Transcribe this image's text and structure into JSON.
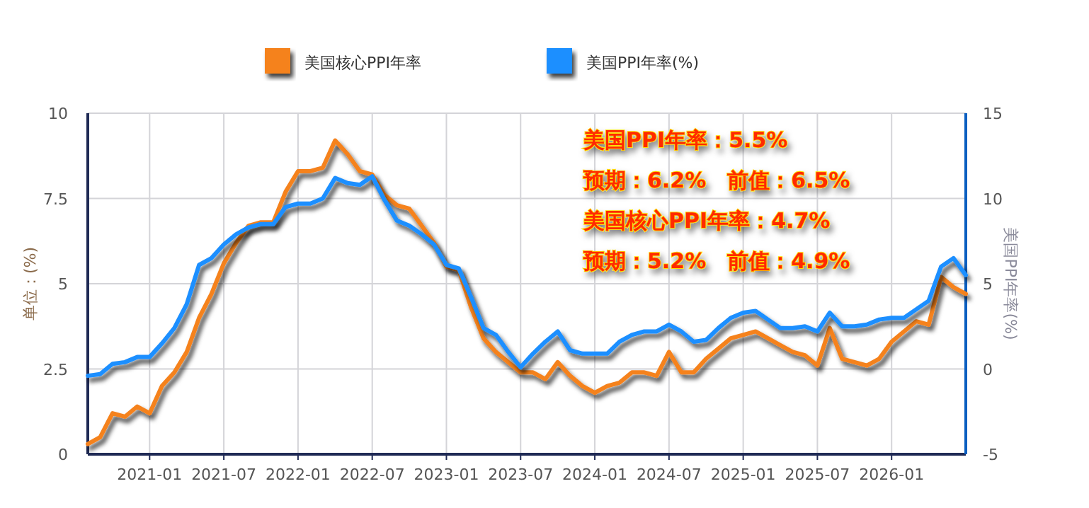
{
  "chart_data": {
    "type": "line",
    "ylabel": "单位：(%)",
    "y2label": "美国PPI年率(%)",
    "x": [
      "2020-08",
      "2020-09",
      "2020-10",
      "2020-11",
      "2020-12",
      "2021-01",
      "2021-02",
      "2021-03",
      "2021-04",
      "2021-05",
      "2021-06",
      "2021-07",
      "2021-08",
      "2021-09",
      "2021-10",
      "2021-11",
      "2021-12",
      "2022-01",
      "2022-02",
      "2022-03",
      "2022-04",
      "2022-05",
      "2022-06",
      "2022-07",
      "2022-08",
      "2022-09",
      "2022-10",
      "2022-11",
      "2022-12",
      "2023-01",
      "2023-02",
      "2023-03",
      "2023-04",
      "2023-05",
      "2023-06",
      "2023-07",
      "2023-08",
      "2023-09",
      "2023-10",
      "2023-11",
      "2023-12",
      "2024-01",
      "2024-02",
      "2024-03",
      "2024-04",
      "2024-05",
      "2024-06",
      "2024-07",
      "2024-08",
      "2024-09",
      "2024-10",
      "2024-11",
      "2024-12",
      "2025-01",
      "2025-02",
      "2025-03",
      "2025-04",
      "2025-05",
      "2025-06",
      "2025-07",
      "2025-08",
      "2025-09",
      "2025-10",
      "2025-11",
      "2025-12",
      "2026-01",
      "2026-02",
      "2026-03",
      "2026-04",
      "2026-05",
      "2026-06",
      "2026-07"
    ],
    "series": [
      {
        "name": "美国核心PPI年率",
        "color": "#f5821f",
        "values": [
          0.3,
          0.5,
          1.2,
          1.1,
          1.4,
          1.2,
          2.0,
          2.4,
          3.0,
          4.0,
          4.7,
          5.6,
          6.2,
          6.7,
          6.8,
          6.8,
          7.7,
          8.3,
          8.3,
          8.4,
          9.2,
          8.8,
          8.3,
          8.2,
          7.6,
          7.3,
          7.2,
          6.7,
          6.2,
          5.5,
          5.4,
          4.3,
          3.4,
          3.0,
          2.7,
          2.4,
          2.4,
          2.2,
          2.7,
          2.3,
          2.0,
          1.8,
          2.0,
          2.1,
          2.4,
          2.4,
          2.3,
          3.0,
          2.4,
          2.4,
          2.8,
          3.1,
          3.4,
          3.5,
          3.6,
          3.4,
          3.2,
          3.0,
          2.9,
          2.6,
          3.7,
          2.8,
          2.7,
          2.6,
          2.8,
          3.3,
          3.6,
          3.9,
          3.8,
          5.2,
          4.9,
          4.7
        ]
      },
      {
        "name": "美国PPI年率(%)",
        "color": "#1e8fff",
        "axis": "y2",
        "values": [
          -0.4,
          -0.3,
          0.3,
          0.4,
          0.7,
          0.7,
          1.5,
          2.4,
          3.8,
          6.1,
          6.5,
          7.3,
          7.9,
          8.3,
          8.5,
          8.5,
          9.5,
          9.7,
          9.7,
          10.0,
          11.2,
          10.9,
          10.8,
          11.3,
          9.9,
          8.7,
          8.4,
          7.9,
          7.3,
          6.1,
          5.9,
          4.2,
          2.4,
          2.0,
          1.0,
          0.1,
          0.9,
          1.6,
          2.2,
          1.1,
          0.9,
          0.9,
          0.9,
          1.6,
          2.0,
          2.2,
          2.2,
          2.6,
          2.2,
          1.6,
          1.7,
          2.4,
          3.0,
          3.3,
          3.4,
          2.9,
          2.4,
          2.4,
          2.5,
          2.2,
          3.3,
          2.5,
          2.5,
          2.6,
          2.9,
          3.0,
          3.0,
          3.5,
          4.0,
          6.0,
          6.5,
          5.5
        ]
      }
    ],
    "xlim": [
      "2020-08",
      "2026-07"
    ],
    "xticks": [
      "2021-01",
      "2021-07",
      "2022-01",
      "2022-07",
      "2023-01",
      "2023-07",
      "2024-01",
      "2024-07",
      "2025-01",
      "2025-07",
      "2026-01"
    ],
    "ylim": [
      0,
      10
    ],
    "yticks": [
      0,
      {
        "value": 2.5,
        "label": "2.5"
      },
      5,
      {
        "value": 7.5,
        "label": "7.5"
      },
      10
    ],
    "y2lim": [
      -5,
      15
    ],
    "y2ticks": [
      -5,
      0,
      5,
      10,
      15
    ],
    "annotations": [
      "美国PPI年率：5.5%",
      "预期：6.2%　前值：6.5%",
      "美国核心PPI年率：4.7%",
      "预期：5.2%　前值：4.9%"
    ],
    "grid": true,
    "legend": "top",
    "marker": "none",
    "line_style": "solid"
  }
}
